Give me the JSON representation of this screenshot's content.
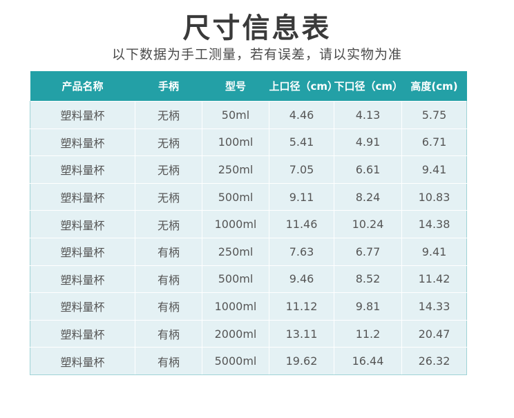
{
  "title": "尺寸信息表",
  "subtitle": "以下数据为手工测量，若有误差，请以实物为准",
  "colors": {
    "header_bg": "#23a0a6",
    "cell_bg": "#e4f1f4"
  },
  "table": {
    "headers": [
      "产品名称",
      "手柄",
      "型号",
      "上口径（cm）",
      "下口径（cm）",
      "高度(cm)"
    ],
    "rows": [
      [
        "塑料量杯",
        "无柄",
        "50ml",
        "4.46",
        "4.13",
        "5.75"
      ],
      [
        "塑料量杯",
        "无柄",
        "100ml",
        "5.41",
        "4.91",
        "6.71"
      ],
      [
        "塑料量杯",
        "无柄",
        "250ml",
        "7.05",
        "6.61",
        "9.41"
      ],
      [
        "塑料量杯",
        "无柄",
        "500ml",
        "9.11",
        "8.24",
        "10.83"
      ],
      [
        "塑料量杯",
        "无柄",
        "1000ml",
        "11.46",
        "10.24",
        "14.38"
      ],
      [
        "塑料量杯",
        "有柄",
        "250ml",
        "7.63",
        "6.77",
        "9.41"
      ],
      [
        "塑料量杯",
        "有柄",
        "500ml",
        "9.46",
        "8.52",
        "11.42"
      ],
      [
        "塑料量杯",
        "有柄",
        "1000ml",
        "11.12",
        "9.81",
        "14.33"
      ],
      [
        "塑料量杯",
        "有柄",
        "2000ml",
        "13.11",
        "11.2",
        "20.47"
      ],
      [
        "塑料量杯",
        "有柄",
        "5000ml",
        "19.62",
        "16.44",
        "26.32"
      ]
    ]
  }
}
